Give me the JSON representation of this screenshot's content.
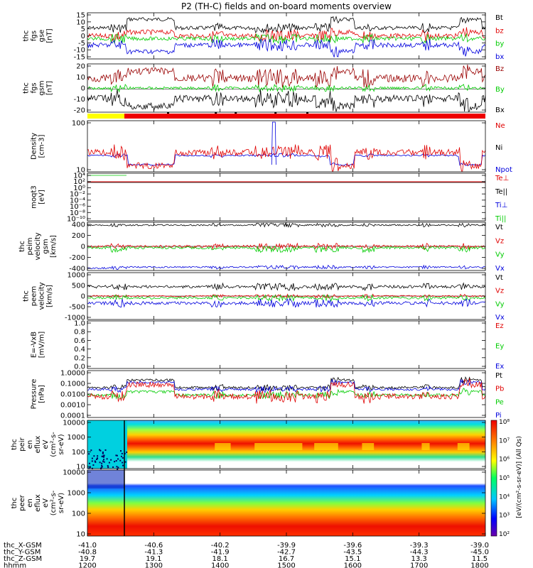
{
  "title": "P2 (TH-C) fields and on-board moments overview",
  "colors": {
    "black": "#000000",
    "red": "#e00000",
    "green": "#00cc00",
    "blue": "#0000dd",
    "darkred": "#990000",
    "yellow": "#ffff00",
    "bar_red": "#ee0000"
  },
  "panels": [
    {
      "id": "fgs_gse",
      "ylabel": [
        "thc",
        "fgs",
        "gse",
        "[nT]"
      ],
      "ticks": [
        "15",
        "10",
        "5",
        "0",
        "-5",
        "-10",
        "-15"
      ],
      "legend": [
        {
          "label": "Bt",
          "color": "#000000"
        },
        {
          "label": "bz",
          "color": "#e00000"
        },
        {
          "label": "by",
          "color": "#00cc00"
        },
        {
          "label": "bx",
          "color": "#0000dd"
        }
      ]
    },
    {
      "id": "fgs_gsm",
      "ylabel": [
        "thc",
        "fgs",
        "gsm",
        "[nT]"
      ],
      "ticks": [
        "20",
        "10",
        "0",
        "-10",
        "-20"
      ],
      "legend": [
        {
          "label": "Bz",
          "color": "#990000"
        },
        {
          "label": "By",
          "color": "#00cc00"
        },
        {
          "label": "Bx",
          "color": "#000000"
        }
      ]
    },
    {
      "id": "density",
      "ylabel": [
        "Density",
        "[cm-3]"
      ],
      "ticks": [
        "100",
        "10"
      ],
      "legend": [
        {
          "label": "Ne",
          "color": "#e00000"
        },
        {
          "label": "Ni",
          "color": "#000000"
        },
        {
          "label": "Npot",
          "color": "#0000dd"
        }
      ]
    },
    {
      "id": "temperature",
      "ylabel": [
        "moqt3",
        "[eV]"
      ],
      "ticks": [
        "10⁴",
        "10²",
        "10⁰",
        "10⁻²",
        "10⁻⁴",
        "10⁻⁶",
        "10⁻⁸",
        "10⁻¹⁰"
      ],
      "legend": [
        {
          "label": "Te⊥",
          "color": "#e00000"
        },
        {
          "label": "Te||",
          "color": "#000000"
        },
        {
          "label": "Ti⊥",
          "color": "#0000dd"
        },
        {
          "label": "Ti||",
          "color": "#00cc00"
        }
      ]
    },
    {
      "id": "peim_vel",
      "ylabel": [
        "thc",
        "peim",
        "velocity",
        "gsm",
        "[km/s]"
      ],
      "ticks": [
        "400",
        "200",
        "0",
        "-200",
        "-400"
      ],
      "legend": [
        {
          "label": "Vt",
          "color": "#000000"
        },
        {
          "label": "Vz",
          "color": "#e00000"
        },
        {
          "label": "Vy",
          "color": "#00cc00"
        },
        {
          "label": "Vx",
          "color": "#0000dd"
        }
      ]
    },
    {
      "id": "peem_vel",
      "ylabel": [
        "thc",
        "peem",
        "velocity",
        "[km/s]"
      ],
      "ticks": [
        "1000",
        "500",
        "0",
        "-500",
        "-1000"
      ],
      "legend": [
        {
          "label": "Vt",
          "color": "#000000"
        },
        {
          "label": "Vz",
          "color": "#e00000"
        },
        {
          "label": "Vy",
          "color": "#00cc00"
        },
        {
          "label": "Vx",
          "color": "#0000dd"
        }
      ]
    },
    {
      "id": "efield",
      "ylabel": [
        "E=-VxB",
        "[mV/m]"
      ],
      "ticks": [
        "1.0",
        "0.8",
        "0.6",
        "0.4",
        "0.2",
        "0.0"
      ],
      "legend": [
        {
          "label": "Ez",
          "color": "#e00000"
        },
        {
          "label": "Ey",
          "color": "#00cc00"
        },
        {
          "label": "Ex",
          "color": "#0000dd"
        }
      ]
    },
    {
      "id": "pressure",
      "ylabel": [
        "Pressure",
        "[nPa]"
      ],
      "ticks": [
        "1.0000",
        "0.1000",
        "0.0100",
        "0.0010",
        "0.0001"
      ],
      "legend": [
        {
          "label": "Pt",
          "color": "#000000"
        },
        {
          "label": "Pb",
          "color": "#e00000"
        },
        {
          "label": "Pe",
          "color": "#00cc00"
        },
        {
          "label": "Pi",
          "color": "#0000dd"
        }
      ]
    },
    {
      "id": "peir",
      "ylabel": [
        "thc",
        "peir",
        "en",
        "eflux",
        "eV",
        "(cm²-s-",
        "sr-eV)"
      ],
      "ticks": [
        "10000",
        "1000",
        "100",
        "10"
      ],
      "legend": []
    },
    {
      "id": "peer",
      "ylabel": [
        "thc",
        "peer",
        "en",
        "eflux",
        "eV",
        "(cm²-s-",
        "sr-eV)"
      ],
      "ticks": [
        "10000",
        "1000",
        "100",
        "10"
      ],
      "legend": []
    }
  ],
  "colorbar": {
    "ticks": [
      "10⁸",
      "10⁷",
      "10⁶",
      "10⁵",
      "10⁴",
      "10³",
      "10²"
    ],
    "label": "[eV/(cm²-s-sr-eV)] (All Qs)"
  },
  "xaxis": {
    "row_labels": [
      "thc_X-GSM",
      "thc_Y-GSM",
      "thc_Z-GSM",
      "hhmm",
      "2020 Sep 06"
    ],
    "columns": [
      [
        "-41.0",
        "-40.8",
        "19.7",
        "1200"
      ],
      [
        "-40.6",
        "-41.3",
        "19.1",
        "1300"
      ],
      [
        "-40.2",
        "-41.9",
        "18.1",
        "1400"
      ],
      [
        "-39.9",
        "-42.7",
        "16.7",
        "1500"
      ],
      [
        "-39.6",
        "-43.5",
        "15.1",
        "1600"
      ],
      [
        "-39.3",
        "-44.3",
        "13.3",
        "1700"
      ],
      [
        "-39.0",
        "-45.0",
        "11.5",
        "1800"
      ]
    ]
  },
  "chart_data": [
    {
      "type": "line",
      "title": "P2 (TH-C) fields and on-board moments overview",
      "ylabel": "thc fgs gse [nT]",
      "ylim": [
        -15,
        15
      ],
      "x": [
        "1200",
        "1300",
        "1400",
        "1500",
        "1600",
        "1700",
        "1800"
      ],
      "series": [
        {
          "name": "Bt",
          "values": [
            6,
            13,
            9,
            8,
            9,
            8,
            10
          ]
        },
        {
          "name": "bz",
          "values": [
            1,
            4,
            1,
            1,
            2,
            0,
            3
          ]
        },
        {
          "name": "by",
          "values": [
            -1,
            0,
            0,
            1,
            0,
            0,
            0
          ]
        },
        {
          "name": "bx",
          "values": [
            -4,
            -10,
            -5,
            -5,
            -6,
            -6,
            -9
          ]
        }
      ]
    },
    {
      "type": "line",
      "ylabel": "thc fgs gsm [nT]",
      "ylim": [
        -25,
        20
      ],
      "x": [
        "1200",
        "1300",
        "1400",
        "1500",
        "1600",
        "1700",
        "1800"
      ],
      "series": [
        {
          "name": "Bz",
          "values": [
            5,
            12,
            7,
            6,
            8,
            6,
            10
          ]
        },
        {
          "name": "By",
          "values": [
            0,
            0,
            0,
            0,
            0,
            0,
            0
          ]
        },
        {
          "name": "Bx",
          "values": [
            -5,
            -12,
            -8,
            -7,
            -9,
            -8,
            -10
          ]
        }
      ]
    },
    {
      "type": "line",
      "ylabel": "Density [cm-3]",
      "x": [
        "1200",
        "1300",
        "1400",
        "1500",
        "1600",
        "1700",
        "1800"
      ],
      "series": [
        {
          "name": "Ne",
          "values": [
            12,
            4,
            15,
            10,
            5,
            10,
            4
          ]
        },
        {
          "name": "Npot",
          "values": [
            14,
            7,
            13,
            11,
            7,
            10,
            6
          ]
        }
      ]
    },
    {
      "type": "line",
      "ylabel": "thc peim velocity gsm [km/s]",
      "ylim": [
        -400,
        400
      ],
      "x": [
        "1200",
        "1300",
        "1400",
        "1500",
        "1600",
        "1700",
        "1800"
      ],
      "series": [
        {
          "name": "Vt",
          "values": [
            380,
            400,
            400,
            390,
            400,
            400,
            400
          ]
        },
        {
          "name": "Vz",
          "values": [
            0,
            5,
            10,
            0,
            5,
            0,
            10
          ]
        },
        {
          "name": "Vy",
          "values": [
            -20,
            -40,
            -30,
            -40,
            -30,
            -40,
            -30
          ]
        },
        {
          "name": "Vx",
          "values": [
            -380,
            -380,
            -370,
            -370,
            -380,
            -370,
            -375
          ]
        }
      ]
    },
    {
      "type": "line",
      "ylabel": "thc peem velocity [km/s]",
      "ylim": [
        -1000,
        1000
      ],
      "x": [
        "1200",
        "1300",
        "1400",
        "1500",
        "1600",
        "1700",
        "1800"
      ],
      "series": [
        {
          "name": "Vt",
          "values": [
            400,
            400,
            420,
            430,
            400,
            400,
            400
          ]
        },
        {
          "name": "Vz",
          "values": [
            0,
            0,
            0,
            0,
            0,
            0,
            0
          ]
        },
        {
          "name": "Vy",
          "values": [
            -100,
            -150,
            -150,
            -150,
            -150,
            -150,
            -150
          ]
        },
        {
          "name": "Vx",
          "values": [
            -350,
            -300,
            -350,
            -380,
            -350,
            -330,
            -330
          ]
        }
      ]
    },
    {
      "type": "line",
      "ylabel": "Pressure [nPa]",
      "x": [
        "1200",
        "1300",
        "1400",
        "1500",
        "1600",
        "1700",
        "1800"
      ],
      "series": [
        {
          "name": "Pt",
          "values": [
            0.05,
            0.2,
            0.06,
            0.05,
            0.1,
            0.05,
            0.15
          ]
        },
        {
          "name": "Pb",
          "values": [
            0.02,
            0.05,
            0.02,
            0.02,
            0.03,
            0.02,
            0.04
          ]
        },
        {
          "name": "Pe",
          "values": [
            0.015,
            0.01,
            0.02,
            0.015,
            0.01,
            0.015,
            0.01
          ]
        },
        {
          "name": "Pi",
          "values": [
            0.04,
            0.1,
            0.05,
            0.04,
            0.06,
            0.04,
            0.1
          ]
        }
      ]
    },
    {
      "type": "heatmap",
      "ylabel": "thc peir en eflux eV/(cm²-s-sr-eV)",
      "ylim": [
        5,
        20000
      ],
      "x": [
        "1200",
        "1300",
        "1400",
        "1500",
        "1600",
        "1700",
        "1800"
      ]
    },
    {
      "type": "heatmap",
      "ylabel": "thc peer en eflux eV/(cm²-s-sr-eV)",
      "ylim": [
        5,
        20000
      ],
      "x": [
        "1200",
        "1300",
        "1400",
        "1500",
        "1600",
        "1700",
        "1800"
      ]
    }
  ]
}
